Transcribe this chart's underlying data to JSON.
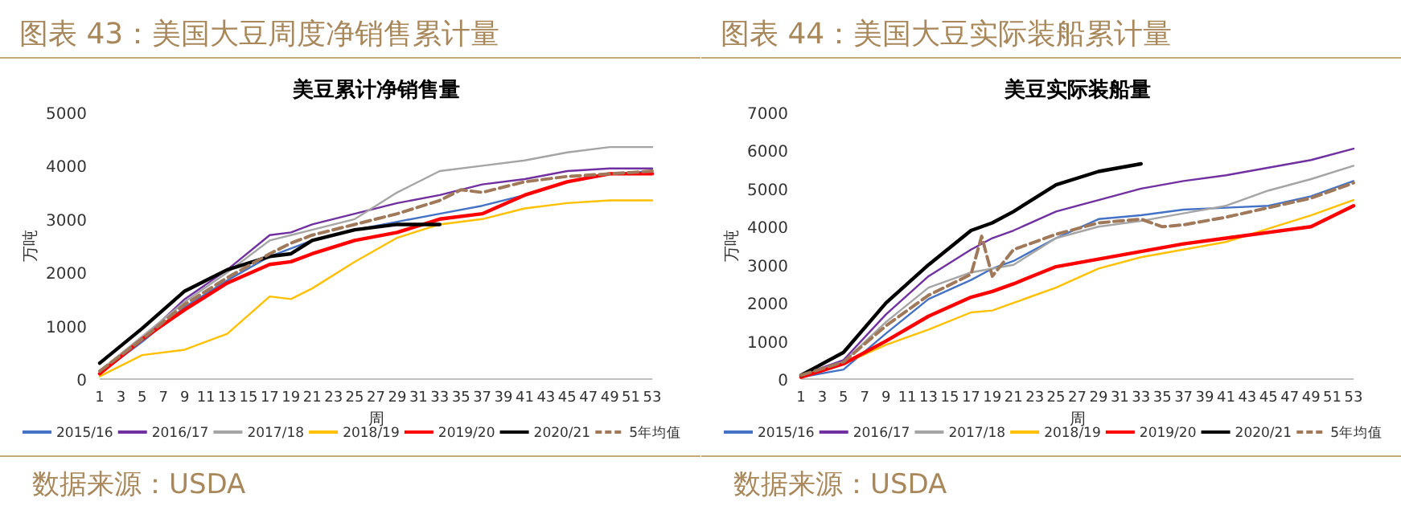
{
  "chart_data": [
    {
      "type": "line",
      "title": "图表 43：美国大豆周度净销售累计量",
      "subtitle": "美豆累计净销售量",
      "xlabel": "周",
      "ylabel": "万吨",
      "annotations": [
        "数据来源：USDA"
      ],
      "x": [
        1,
        5,
        9,
        13,
        17,
        19,
        21,
        25,
        29,
        33,
        37,
        41,
        45,
        49,
        53
      ],
      "xlim": [
        1,
        53
      ],
      "xticks": [
        1,
        3,
        5,
        7,
        9,
        11,
        13,
        15,
        17,
        19,
        21,
        23,
        25,
        27,
        29,
        31,
        33,
        35,
        37,
        39,
        41,
        43,
        45,
        47,
        49,
        51,
        53
      ],
      "ylim": [
        0,
        5000
      ],
      "yticks": [
        0,
        1000,
        2000,
        3000,
        4000,
        5000
      ],
      "grid": false,
      "legend": "bottom",
      "marker": "none",
      "series": [
        {
          "name": "2015/16",
          "color": "#4472c4",
          "values": [
            100,
            700,
            1350,
            1850,
            2300,
            2450,
            2600,
            2800,
            2950,
            3100,
            3250,
            3450,
            3700,
            3850,
            3900
          ]
        },
        {
          "name": "2016/17",
          "color": "#7030a0",
          "values": [
            100,
            750,
            1500,
            2050,
            2700,
            2750,
            2900,
            3100,
            3300,
            3450,
            3650,
            3750,
            3900,
            3950,
            3950
          ]
        },
        {
          "name": "2017/18",
          "color": "#a5a5a5",
          "values": [
            150,
            800,
            1450,
            2000,
            2600,
            2700,
            2800,
            3000,
            3500,
            3900,
            4000,
            4100,
            4250,
            4350,
            4350
          ]
        },
        {
          "name": "2018/19",
          "color": "#ffc000",
          "values": [
            50,
            450,
            550,
            850,
            1550,
            1500,
            1700,
            2200,
            2650,
            2900,
            3000,
            3200,
            3300,
            3350,
            3350
          ]
        },
        {
          "name": "2019/20",
          "color": "#ff0000",
          "values": [
            100,
            750,
            1300,
            1800,
            2150,
            2200,
            2350,
            2600,
            2750,
            3000,
            3100,
            3450,
            3700,
            3850,
            3850
          ]
        },
        {
          "name": "2020/21",
          "color": "#000000",
          "values": [
            300,
            950,
            1650,
            2050,
            2300,
            2350,
            2600,
            2800,
            2900,
            2900,
            null,
            null,
            null,
            null,
            null
          ]
        },
        {
          "name": "5年均值",
          "color": "#a0785a",
          "line_style": "dashed",
          "x": [
            1,
            5,
            9,
            13,
            17,
            19,
            21,
            25,
            29,
            33,
            35,
            37,
            41,
            45,
            49,
            53
          ],
          "values": [
            150,
            750,
            1400,
            1900,
            2350,
            2550,
            2700,
            2900,
            3100,
            3350,
            3550,
            3500,
            3700,
            3800,
            3850,
            3900
          ]
        }
      ]
    },
    {
      "type": "line",
      "title": "图表 44：美国大豆实际装船累计量",
      "subtitle": "美豆实际装船量",
      "xlabel": "周",
      "ylabel": "万吨",
      "annotations": [
        "数据来源：USDA"
      ],
      "x": [
        1,
        5,
        9,
        13,
        17,
        19,
        21,
        25,
        29,
        33,
        37,
        41,
        45,
        49,
        53
      ],
      "xlim": [
        1,
        53
      ],
      "xticks": [
        1,
        3,
        5,
        7,
        9,
        11,
        13,
        15,
        17,
        19,
        21,
        23,
        25,
        27,
        29,
        31,
        33,
        35,
        37,
        39,
        41,
        43,
        45,
        47,
        49,
        51,
        53
      ],
      "ylim": [
        0,
        7000
      ],
      "yticks": [
        0,
        1000,
        2000,
        3000,
        4000,
        5000,
        6000,
        7000
      ],
      "grid": false,
      "legend": "bottom",
      "marker": "none",
      "series": [
        {
          "name": "2015/16",
          "color": "#4472c4",
          "values": [
            50,
            250,
            1200,
            2100,
            2600,
            2900,
            3100,
            3700,
            4200,
            4300,
            4450,
            4500,
            4550,
            4800,
            5200
          ]
        },
        {
          "name": "2016/17",
          "color": "#7030a0",
          "values": [
            100,
            500,
            1700,
            2700,
            3400,
            3700,
            3900,
            4400,
            4700,
            5000,
            5200,
            5350,
            5550,
            5750,
            6050
          ]
        },
        {
          "name": "2017/18",
          "color": "#a5a5a5",
          "values": [
            100,
            450,
            1500,
            2400,
            2800,
            2900,
            3000,
            3700,
            4000,
            4150,
            4350,
            4550,
            4950,
            5250,
            5600
          ]
        },
        {
          "name": "2018/19",
          "color": "#ffc000",
          "values": [
            50,
            400,
            900,
            1300,
            1750,
            1800,
            2000,
            2400,
            2900,
            3200,
            3400,
            3600,
            3950,
            4300,
            4700
          ]
        },
        {
          "name": "2019/20",
          "color": "#ff0000",
          "values": [
            50,
            400,
            1000,
            1650,
            2150,
            2300,
            2500,
            2950,
            3150,
            3350,
            3550,
            3700,
            3850,
            4000,
            4550
          ]
        },
        {
          "name": "2020/21",
          "color": "#000000",
          "values": [
            100,
            700,
            2000,
            3000,
            3900,
            4100,
            4400,
            5100,
            5450,
            5650,
            null,
            null,
            null,
            null,
            null
          ]
        },
        {
          "name": "5年均值",
          "color": "#a0785a",
          "line_style": "dashed",
          "x": [
            1,
            5,
            9,
            13,
            17,
            18,
            19,
            21,
            25,
            29,
            33,
            35,
            37,
            41,
            45,
            49,
            53
          ],
          "values": [
            100,
            450,
            1400,
            2200,
            2750,
            3750,
            2700,
            3400,
            3800,
            4100,
            4200,
            4000,
            4050,
            4250,
            4500,
            4750,
            5150
          ]
        }
      ]
    }
  ]
}
